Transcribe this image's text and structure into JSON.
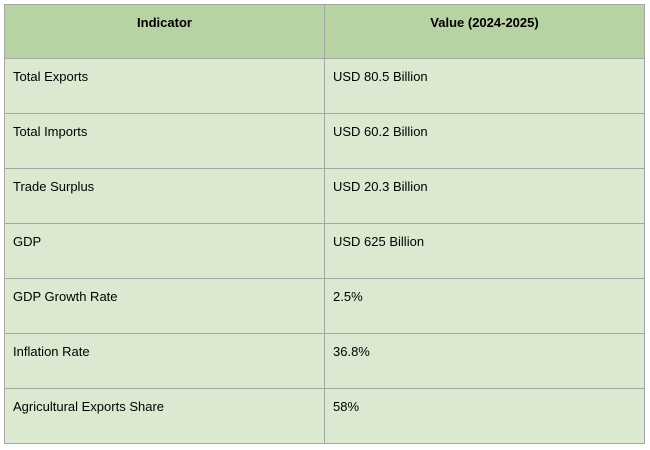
{
  "table": {
    "headers": {
      "indicator": "Indicator",
      "value": "Value (2024-2025)"
    },
    "rows": [
      {
        "indicator": "Total Exports",
        "value": "USD 80.5 Billion"
      },
      {
        "indicator": "Total Imports",
        "value": "USD 60.2 Billion"
      },
      {
        "indicator": "Trade Surplus",
        "value": "USD 20.3 Billion"
      },
      {
        "indicator": "GDP",
        "value": "USD 625 Billion"
      },
      {
        "indicator": "GDP Growth Rate",
        "value": "2.5%"
      },
      {
        "indicator": "Inflation Rate",
        "value": "36.8%"
      },
      {
        "indicator": "Agricultural Exports Share",
        "value": "58%"
      }
    ]
  },
  "colors": {
    "header_bg": "#b7d3a4",
    "row_bg": "#dbe9d1",
    "border": "#a6a6a6"
  }
}
